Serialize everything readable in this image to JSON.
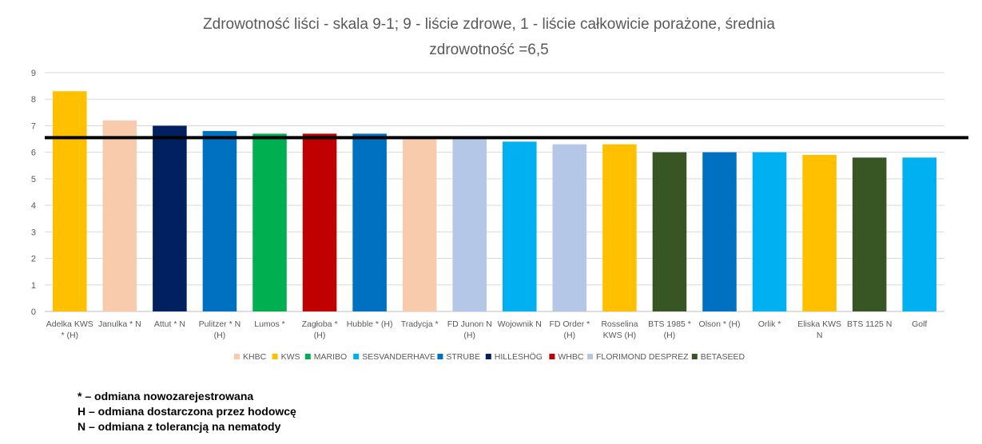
{
  "chart_data": {
    "type": "bar",
    "title_line1": "Zdrowotność liści - skala 9-1; 9 - liście zdrowe, 1 - liście całkowicie porażone, średnia",
    "title_line2": "zdrowotność =6,5",
    "xlabel": "",
    "ylabel": "",
    "ylim": [
      0,
      9
    ],
    "yticks": [
      0,
      1,
      2,
      3,
      4,
      5,
      6,
      7,
      8,
      9
    ],
    "grid": true,
    "reference_line": {
      "value": 6.55,
      "color": "#000000"
    },
    "categories": [
      [
        "Adelka KWS",
        "* (H)"
      ],
      [
        "Janulka * N"
      ],
      [
        "Attut * N"
      ],
      [
        "Pulitzer * N",
        "(H)"
      ],
      [
        "Lumos *"
      ],
      [
        "Zagłoba *",
        "(H)"
      ],
      [
        "Hubble * (H)"
      ],
      [
        "Tradycja *"
      ],
      [
        "FD Junon N",
        "(H)"
      ],
      [
        "Wojownik N"
      ],
      [
        "FD Order *",
        "(H)"
      ],
      [
        "Rosselina",
        "KWS (H)"
      ],
      [
        "BTS 1985 *",
        "(H)"
      ],
      [
        "Olson * (H)"
      ],
      [
        "Orlik *"
      ],
      [
        "Eliska KWS",
        "N"
      ],
      [
        "BTS 1125 N"
      ],
      [
        "Golf"
      ]
    ],
    "values": [
      8.3,
      7.2,
      7.0,
      6.8,
      6.7,
      6.7,
      6.7,
      6.5,
      6.5,
      6.4,
      6.3,
      6.3,
      6.0,
      6.0,
      6.0,
      5.9,
      5.8,
      5.8
    ],
    "bar_colors": [
      "#FFC000",
      "#F8CBAD",
      "#002060",
      "#0070C0",
      "#00B050",
      "#C00000",
      "#0070C0",
      "#F8CBAD",
      "#B4C7E7",
      "#00B0F0",
      "#B4C7E7",
      "#FFC000",
      "#375623",
      "#0070C0",
      "#00B0F0",
      "#FFC000",
      "#375623",
      "#00B0F0"
    ],
    "legend_position": "bottom",
    "legend": [
      {
        "name": "KHBC",
        "color": "#F8CBAD"
      },
      {
        "name": "KWS",
        "color": "#FFC000"
      },
      {
        "name": "MARIBO",
        "color": "#00B050"
      },
      {
        "name": "SESVANDERHAVE",
        "color": "#00B0F0"
      },
      {
        "name": "STRUBE",
        "color": "#0070C0"
      },
      {
        "name": "HILLESHÖG",
        "color": "#002060"
      },
      {
        "name": "WHBC",
        "color": "#C00000"
      },
      {
        "name": "FLORIMOND DESPREZ",
        "color": "#B4C7E7"
      },
      {
        "name": "BETASEED",
        "color": "#375623"
      }
    ]
  },
  "notes": [
    "* – odmiana nowozarejestrowana",
    "H – odmiana dostarczona przez hodowcę",
    "N – odmiana z tolerancją na nematody"
  ]
}
